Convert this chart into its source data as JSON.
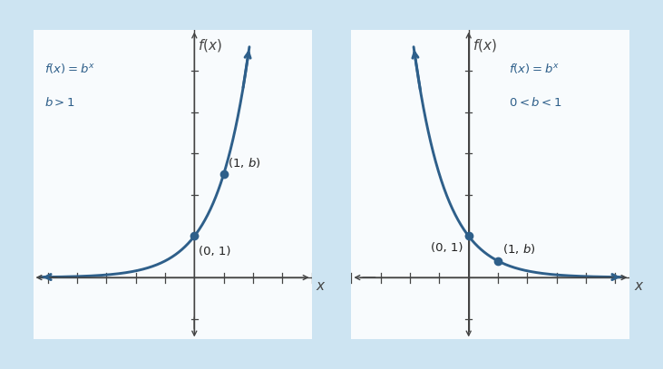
{
  "bg_color": "#cde4f2",
  "panel_color": "#f8fbfd",
  "curve_color": "#2e5f8a",
  "point_color": "#2e5f8a",
  "text_color": "#2e5f8a",
  "axis_color": "#444444",
  "b_growth": 2.5,
  "b_decay": 0.4,
  "xlim1": [
    -5.5,
    4.0
  ],
  "ylim1": [
    -1.5,
    6.0
  ],
  "xlim2": [
    -4.0,
    5.5
  ],
  "ylim2": [
    -1.5,
    6.0
  ],
  "curve_lw": 2.1,
  "point_ms": 6,
  "fig_width": 7.31,
  "fig_height": 4.07,
  "label1_formula": "$f(x) = b^x$",
  "label1_cond": "$b > 1$",
  "label2_formula": "$f(x) = b^x$",
  "label2_cond": "$0 < b < 1$",
  "point_label_01": "(0, 1)",
  "point_label_1b": "(1, $b$)",
  "fx_label": "$f(x)$",
  "x_label": "$x$"
}
